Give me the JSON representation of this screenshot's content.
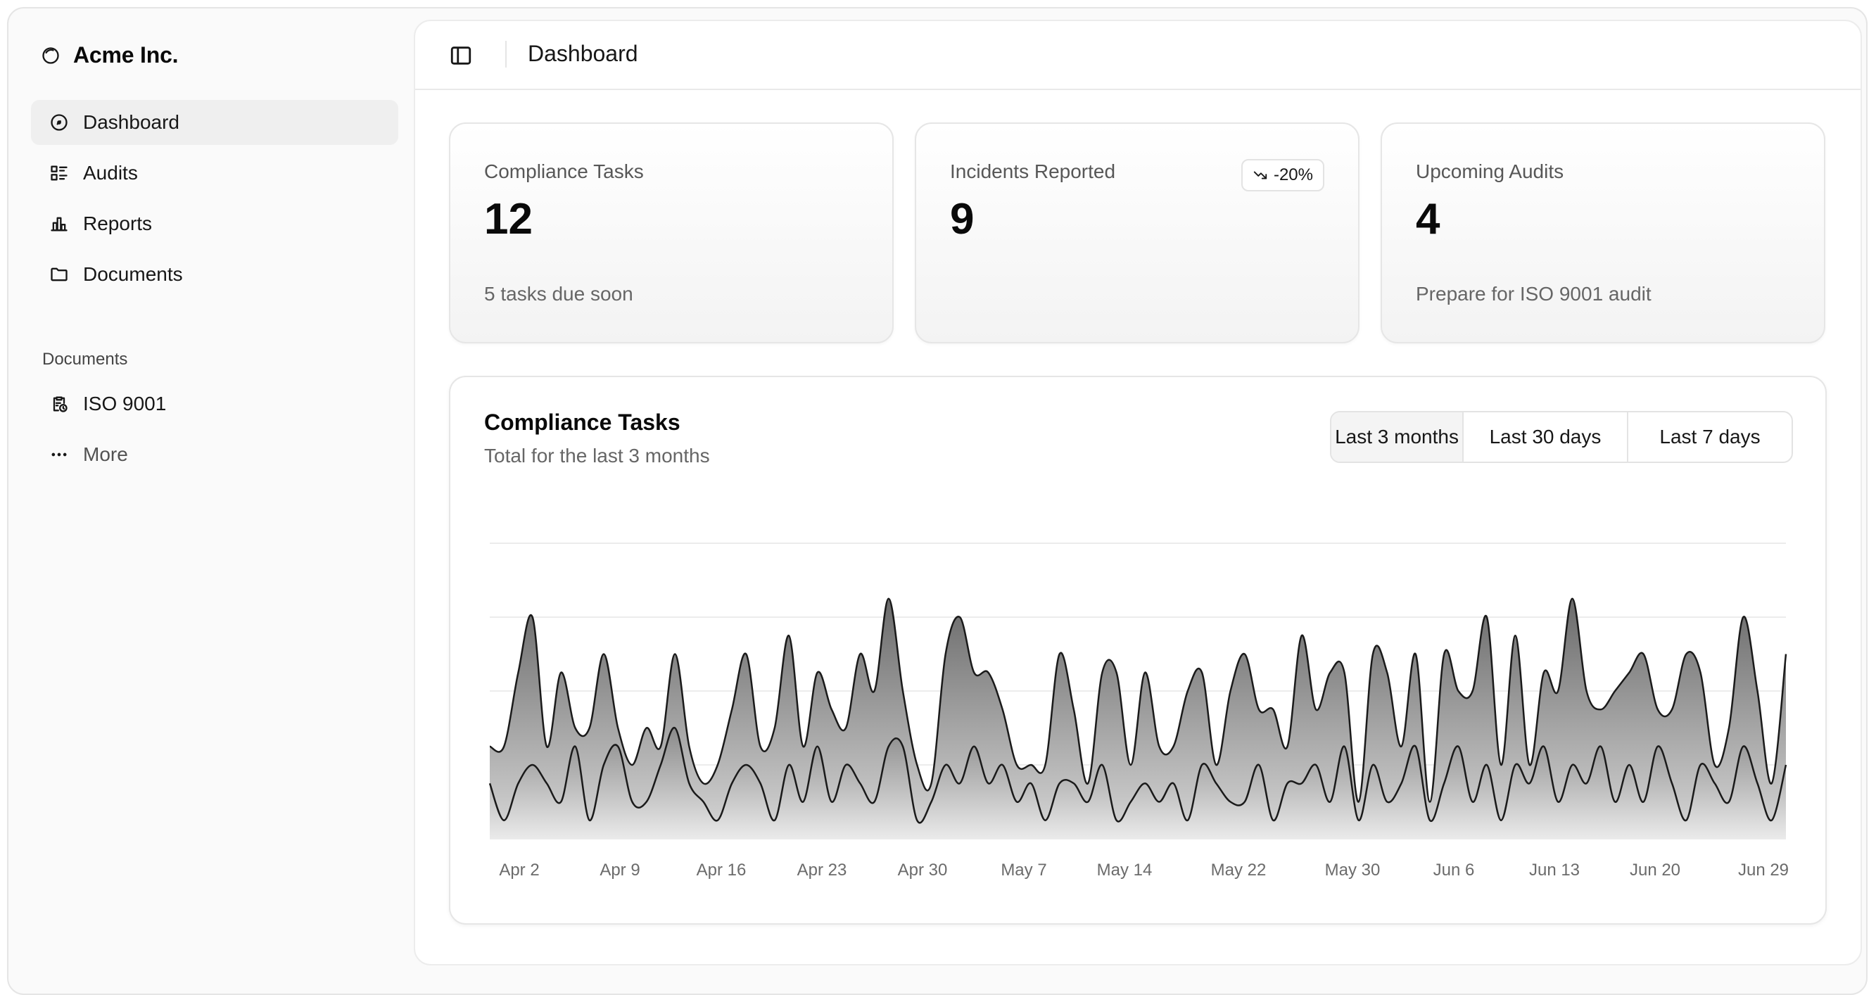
{
  "sidebar": {
    "brand": "Acme Inc.",
    "items": [
      {
        "label": "Dashboard",
        "icon": "gauge-icon",
        "active": true
      },
      {
        "label": "Audits",
        "icon": "list-details-icon"
      },
      {
        "label": "Reports",
        "icon": "bar-chart-icon"
      },
      {
        "label": "Documents",
        "icon": "folder-icon"
      }
    ],
    "section_label": "Documents",
    "documents": [
      {
        "label": "ISO 9001",
        "icon": "clipboard-clock-icon"
      },
      {
        "label": "More",
        "icon": "dots-icon"
      }
    ]
  },
  "header": {
    "title": "Dashboard"
  },
  "cards": [
    {
      "label": "Compliance Tasks",
      "value": "12",
      "footer": "5 tasks due soon"
    },
    {
      "label": "Incidents Reported",
      "value": "9",
      "badge": "-20%",
      "badge_icon": "trending-down-icon"
    },
    {
      "label": "Upcoming Audits",
      "value": "4",
      "footer": "Prepare for ISO 9001 audit"
    }
  ],
  "chart": {
    "title": "Compliance Tasks",
    "subtitle": "Total for the last 3 months",
    "ranges": [
      "Last 3 months",
      "Last 30 days",
      "Last 7 days"
    ],
    "active_range": "Last 3 months"
  },
  "chart_data": {
    "type": "area",
    "x_tick_labels": [
      "Apr 2",
      "Apr 9",
      "Apr 16",
      "Apr 23",
      "Apr 30",
      "May 7",
      "May 14",
      "May 22",
      "May 30",
      "Jun 6",
      "Jun 13",
      "Jun 20",
      "Jun 29"
    ],
    "grid": true,
    "stacked": true,
    "series": [
      {
        "values": [
          3,
          1,
          3,
          4,
          3,
          2,
          5,
          1,
          4,
          5,
          2,
          2,
          4,
          6,
          3,
          2,
          1,
          3,
          4,
          3,
          1,
          4,
          2,
          5,
          2,
          4,
          3,
          2,
          5,
          5,
          1,
          2,
          4,
          3,
          5,
          3,
          4,
          2,
          3,
          1,
          3,
          3,
          2,
          4,
          1,
          2,
          3,
          2,
          3,
          1,
          4,
          3,
          2,
          2,
          4,
          1,
          3,
          3,
          4,
          2,
          5,
          1,
          4,
          2,
          3,
          5,
          1,
          3,
          5,
          2,
          4,
          1,
          4,
          3,
          5,
          2,
          4,
          3,
          5,
          2,
          4,
          2,
          5,
          3,
          1,
          4,
          3,
          2,
          5,
          3,
          1,
          4
        ]
      },
      {
        "values": [
          2,
          4,
          6,
          8,
          2,
          7,
          1,
          5,
          6,
          1,
          2,
          4,
          1,
          4,
          2,
          1,
          3,
          4,
          6,
          2,
          5,
          7,
          3,
          4,
          5,
          2,
          7,
          6,
          8,
          3,
          3,
          1,
          6,
          9,
          4,
          6,
          3,
          2,
          1,
          3,
          7,
          4,
          1,
          5,
          8,
          2,
          6,
          3,
          2,
          7,
          5,
          1,
          6,
          8,
          3,
          6,
          2,
          8,
          3,
          7,
          4,
          1,
          6,
          7,
          2,
          5,
          1,
          7,
          3,
          6,
          8,
          3,
          7,
          1,
          4,
          6,
          9,
          5,
          2,
          6,
          5,
          8,
          2,
          4,
          9,
          5,
          1,
          4,
          7,
          5,
          2,
          6
        ]
      }
    ]
  }
}
